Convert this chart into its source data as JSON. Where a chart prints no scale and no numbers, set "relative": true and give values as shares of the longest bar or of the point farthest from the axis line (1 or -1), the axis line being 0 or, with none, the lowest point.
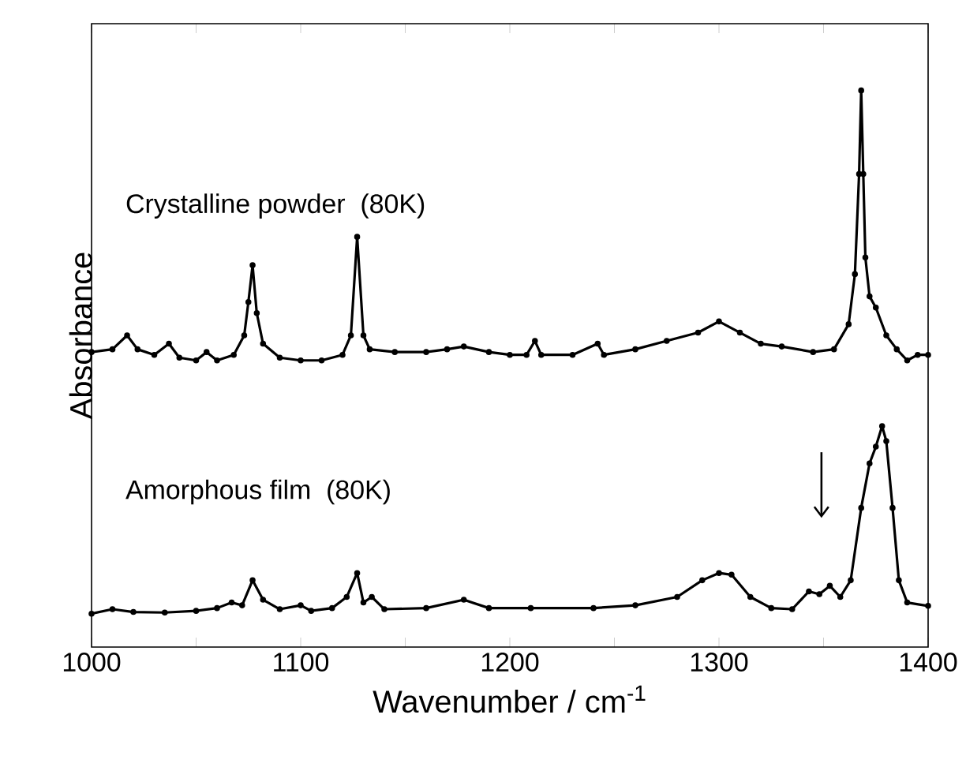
{
  "chart_data": {
    "type": "line",
    "relative": true,
    "xlabel": "Wavenumber / cm$^{-1}$",
    "ylabel": "Absorbance",
    "xlim": [
      1000,
      1400
    ],
    "xticks": [
      1000,
      {
        "value": 1050,
        "label": null
      },
      1100,
      {
        "value": 1150,
        "label": null
      },
      1200,
      {
        "value": 1250,
        "label": null
      },
      1300,
      {
        "value": 1350,
        "label": null
      },
      1400
    ],
    "tick_labels": "x",
    "legend": false,
    "marker": "circle",
    "line_style": "solid",
    "series": [
      {
        "name": "Crystalline powder  (80K)",
        "color": "#000000",
        "x": [
          1000,
          1010,
          1017,
          1022,
          1030,
          1037,
          1042,
          1050,
          1055,
          1060,
          1068,
          1073,
          1075,
          1077,
          1079,
          1082,
          1090,
          1100,
          1110,
          1120,
          1124,
          1127,
          1130,
          1133,
          1145,
          1160,
          1170,
          1178,
          1190,
          1200,
          1208,
          1212,
          1215,
          1230,
          1242,
          1245,
          1260,
          1275,
          1290,
          1300,
          1310,
          1320,
          1330,
          1345,
          1355,
          1362,
          1365,
          1367,
          1368,
          1369,
          1370,
          1372,
          1375,
          1380,
          1385,
          1390,
          1395,
          1400
        ],
        "values": [
          0.53,
          0.535,
          0.56,
          0.535,
          0.525,
          0.545,
          0.52,
          0.515,
          0.53,
          0.515,
          0.525,
          0.56,
          0.62,
          0.686,
          0.6,
          0.545,
          0.52,
          0.515,
          0.515,
          0.525,
          0.56,
          0.737,
          0.56,
          0.535,
          0.53,
          0.53,
          0.535,
          0.54,
          0.53,
          0.525,
          0.525,
          0.55,
          0.525,
          0.525,
          0.545,
          0.525,
          0.535,
          0.55,
          0.565,
          0.585,
          0.565,
          0.545,
          0.54,
          0.53,
          0.535,
          0.58,
          0.67,
          0.85,
          1.0,
          0.85,
          0.7,
          0.63,
          0.61,
          0.56,
          0.535,
          0.515,
          0.525,
          0.525
        ]
      },
      {
        "name": "Amorphous film  (80K)",
        "color": "#000000",
        "x": [
          1000,
          1010,
          1020,
          1035,
          1050,
          1060,
          1067,
          1072,
          1077,
          1082,
          1090,
          1100,
          1105,
          1115,
          1122,
          1127,
          1130,
          1134,
          1140,
          1160,
          1178,
          1190,
          1210,
          1240,
          1260,
          1280,
          1292,
          1300,
          1306,
          1315,
          1325,
          1335,
          1343,
          1348,
          1353,
          1358,
          1363,
          1368,
          1372,
          1375,
          1378,
          1380,
          1383,
          1386,
          1390,
          1400
        ],
        "values": [
          0.06,
          0.068,
          0.063,
          0.062,
          0.065,
          0.07,
          0.08,
          0.075,
          0.12,
          0.085,
          0.068,
          0.075,
          0.065,
          0.07,
          0.09,
          0.133,
          0.08,
          0.09,
          0.068,
          0.07,
          0.085,
          0.07,
          0.07,
          0.07,
          0.075,
          0.09,
          0.12,
          0.133,
          0.13,
          0.09,
          0.07,
          0.068,
          0.1,
          0.095,
          0.11,
          0.09,
          0.12,
          0.25,
          0.33,
          0.36,
          0.397,
          0.37,
          0.25,
          0.12,
          0.08,
          0.074
        ]
      }
    ]
  }
}
